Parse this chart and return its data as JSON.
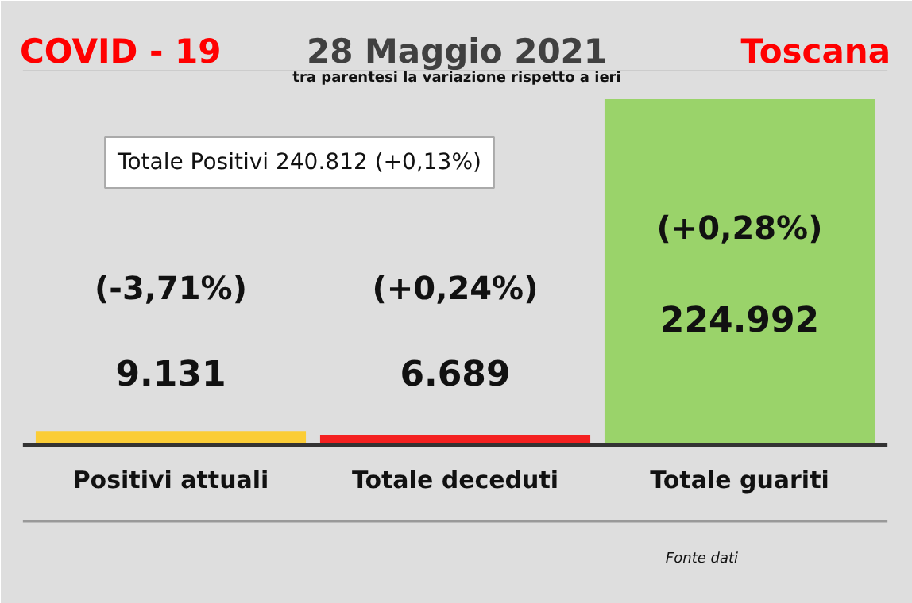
{
  "chart_data": {
    "type": "bar",
    "title": "28 Maggio 2021",
    "subtitle": "tra parentesi la variazione rispetto a ieri",
    "categories": [
      "Positivi attuali",
      "Totale deceduti",
      "Totale guariti"
    ],
    "values": [
      9131,
      6689,
      224992
    ],
    "colors": [
      "#fbcd36",
      "#f42121",
      "#9ad36a"
    ],
    "value_labels": [
      "9.131",
      "6.689",
      "224.992"
    ],
    "annotations": [
      "COVID - 19",
      "Toscana",
      "Totale Positivi 240.812 (+0,13%)",
      "(-3,71%)",
      "(+0,24%)",
      "(+0,28%)",
      "Fonte dati"
    ]
  }
}
